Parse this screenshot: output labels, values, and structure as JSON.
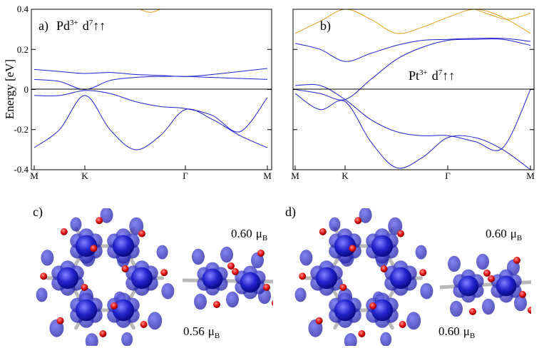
{
  "figure": {
    "ylabel": "Energy [eV]",
    "panels": [
      {
        "id": "a",
        "label": "a)",
        "annotation": {
          "ion": "Pd",
          "charge": "3+",
          "config": "d",
          "sup": "7",
          "spins": "↑↑"
        },
        "yticks": [
          "0.4",
          "0.2",
          "0",
          "-0.2",
          "-0.4"
        ],
        "xticks": [
          "M",
          "K",
          "Γ",
          "M"
        ]
      },
      {
        "id": "b",
        "label": "b)",
        "annotation": {
          "ion": "Pt",
          "charge": "3+",
          "config": "d",
          "sup": "7",
          "spins": "↑↑"
        },
        "xticks": [
          "M",
          "K",
          "Γ",
          "M"
        ]
      }
    ],
    "structures": [
      {
        "id": "c",
        "label": "c)",
        "moment_top": "0.60",
        "moment_bottom": "0.56",
        "unit": "μ",
        "unit_sub": "B"
      },
      {
        "id": "d",
        "label": "d)",
        "moment_top": "0.60",
        "moment_bottom": "0.60",
        "unit": "μ",
        "unit_sub": "B"
      }
    ]
  },
  "chart_data": [
    {
      "type": "line",
      "panel": "a",
      "xlabel": "",
      "ylabel": "Energy [eV]",
      "ylim": [
        -0.4,
        0.4
      ],
      "x_ticks": [
        {
          "label": "M",
          "k": 0
        },
        {
          "label": "K",
          "k": 1
        },
        {
          "label": "Γ",
          "k": 3
        },
        {
          "label": "M",
          "k": 4.5
        }
      ],
      "series": [
        {
          "color": "#2020d0",
          "x": [
            0,
            0.5,
            1,
            1.5,
            2,
            2.5,
            3,
            3.5,
            4,
            4.5
          ],
          "y": [
            0.1,
            0.09,
            0.08,
            0.085,
            0.075,
            0.07,
            0.065,
            0.075,
            0.09,
            0.105
          ]
        },
        {
          "color": "#2020d0",
          "x": [
            0,
            0.5,
            1,
            1.5,
            2,
            2.5,
            3,
            3.5,
            4,
            4.5
          ],
          "y": [
            0.05,
            0.04,
            0.0,
            0.045,
            0.06,
            0.065,
            0.065,
            0.06,
            0.055,
            0.05
          ]
        },
        {
          "color": "#2020d0",
          "x": [
            0,
            0.5,
            1,
            1.5,
            2,
            2.5,
            3,
            3.5,
            4,
            4.5
          ],
          "y": [
            -0.03,
            -0.03,
            -0.005,
            -0.02,
            -0.06,
            -0.085,
            -0.095,
            -0.13,
            -0.21,
            -0.04
          ]
        },
        {
          "color": "#2020d0",
          "x": [
            0,
            0.5,
            1,
            1.5,
            2,
            2.5,
            3,
            3.5,
            4,
            4.5
          ],
          "y": [
            -0.29,
            -0.2,
            -0.03,
            -0.2,
            -0.3,
            -0.23,
            -0.1,
            -0.15,
            -0.23,
            -0.29
          ]
        },
        {
          "color": "#e8a020",
          "x": [
            2.1,
            2.2,
            2.3,
            2.4,
            2.5
          ],
          "y": [
            0.4,
            0.39,
            0.385,
            0.39,
            0.4
          ]
        }
      ]
    },
    {
      "type": "line",
      "panel": "b",
      "xlabel": "",
      "ylabel": "",
      "ylim": [
        -0.4,
        0.4
      ],
      "x_ticks": [
        {
          "label": "M",
          "k": 0
        },
        {
          "label": "K",
          "k": 1
        },
        {
          "label": "Γ",
          "k": 3
        },
        {
          "label": "M",
          "k": 4.5
        }
      ],
      "series": [
        {
          "color": "#2020d0",
          "x": [
            0,
            0.5,
            1,
            1.5,
            2,
            2.5,
            3,
            3.5,
            4,
            4.5
          ],
          "y": [
            0.23,
            0.2,
            0.14,
            0.18,
            0.22,
            0.245,
            0.25,
            0.255,
            0.255,
            0.24
          ]
        },
        {
          "color": "#2020d0",
          "x": [
            0,
            0.5,
            1,
            1.5,
            2,
            2.5,
            3,
            3.5,
            4,
            4.5
          ],
          "y": [
            0.0,
            -0.02,
            -0.05,
            0.05,
            0.15,
            0.21,
            0.245,
            0.25,
            0.25,
            0.22
          ]
        },
        {
          "color": "#2020d0",
          "x": [
            0,
            0.5,
            1,
            1.5,
            2,
            2.5,
            3,
            3.5,
            4,
            4.5
          ],
          "y": [
            0.02,
            0.02,
            -0.05,
            -0.15,
            -0.21,
            -0.23,
            -0.23,
            -0.26,
            -0.29,
            0.0
          ]
        },
        {
          "color": "#2020d0",
          "x": [
            0,
            0.5,
            1,
            1.5,
            2,
            2.5,
            3,
            3.5,
            4,
            4.5
          ],
          "y": [
            -0.02,
            -0.1,
            -0.06,
            -0.26,
            -0.39,
            -0.34,
            -0.24,
            -0.24,
            -0.3,
            -0.4
          ]
        },
        {
          "color": "#e8a020",
          "x": [
            0,
            0.5,
            1,
            1.5,
            2,
            2.5,
            3,
            3.5,
            4,
            4.5
          ],
          "y": [
            0.28,
            0.34,
            0.4,
            0.35,
            0.28,
            0.31,
            0.36,
            0.4,
            0.36,
            0.28
          ]
        },
        {
          "color": "#e8a020",
          "x": [
            3.5,
            3.8,
            4.1,
            4.5
          ],
          "y": [
            0.4,
            0.37,
            0.35,
            0.38
          ]
        }
      ]
    }
  ]
}
